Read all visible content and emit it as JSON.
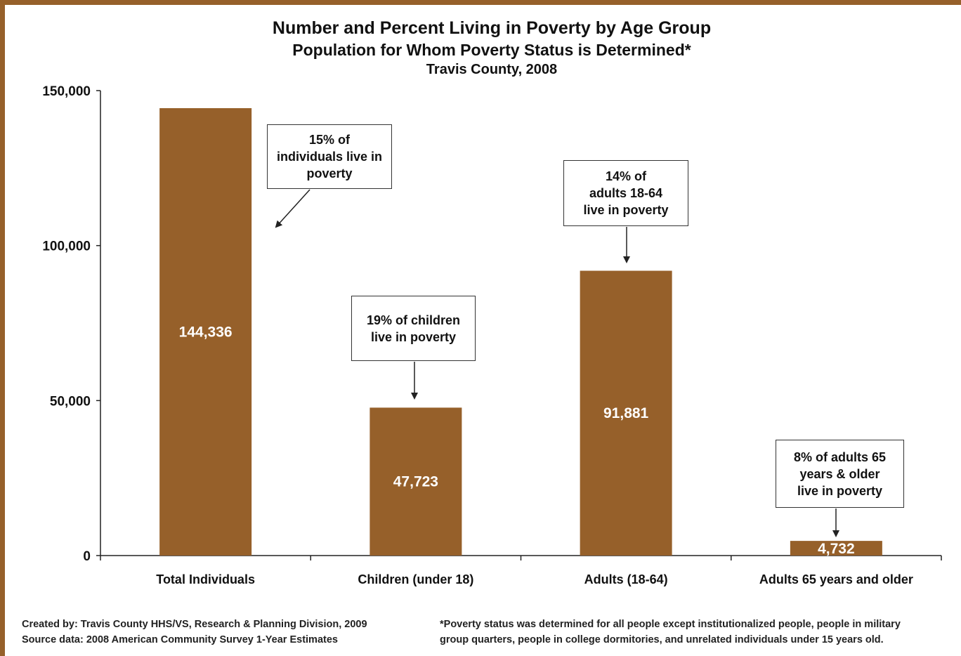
{
  "chart_data": {
    "type": "bar",
    "title": "Number and Percent Living in Poverty by Age Group",
    "subtitle": "Population for Whom Poverty Status is Determined*",
    "subtitle2": "Travis County, 2008",
    "categories": [
      "Total Individuals",
      "Children (under 18)",
      "Adults (18-64)",
      "Adults 65 years and older"
    ],
    "values": [
      144336,
      47723,
      91881,
      4732
    ],
    "value_labels": [
      "144,336",
      "47,723",
      "91,881",
      "4,732"
    ],
    "ylim": [
      0,
      150000
    ],
    "yticks": [
      0,
      50000,
      100000,
      150000
    ],
    "ytick_labels": [
      "0",
      "50,000",
      "100,000",
      "150,000"
    ],
    "bar_color": "#96602a",
    "grid": false,
    "annotations": [
      "15% of\nindividuals live in\npoverty",
      "19% of children\nlive in poverty",
      "14% of\nadults 18-64\nlive in poverty",
      "8% of adults 65\nyears & older\nlive in poverty"
    ]
  },
  "footer": {
    "created_by": "Created by: Travis County HHS/VS, Research & Planning Division, 2009",
    "source": "Source data: 2008 American Community Survey 1-Year Estimates",
    "note_line1": "*Poverty status was determined for all people except institutionalized people, people in military",
    "note_line2": "group quarters, people in college dormitories, and unrelated individuals under 15 years old."
  }
}
